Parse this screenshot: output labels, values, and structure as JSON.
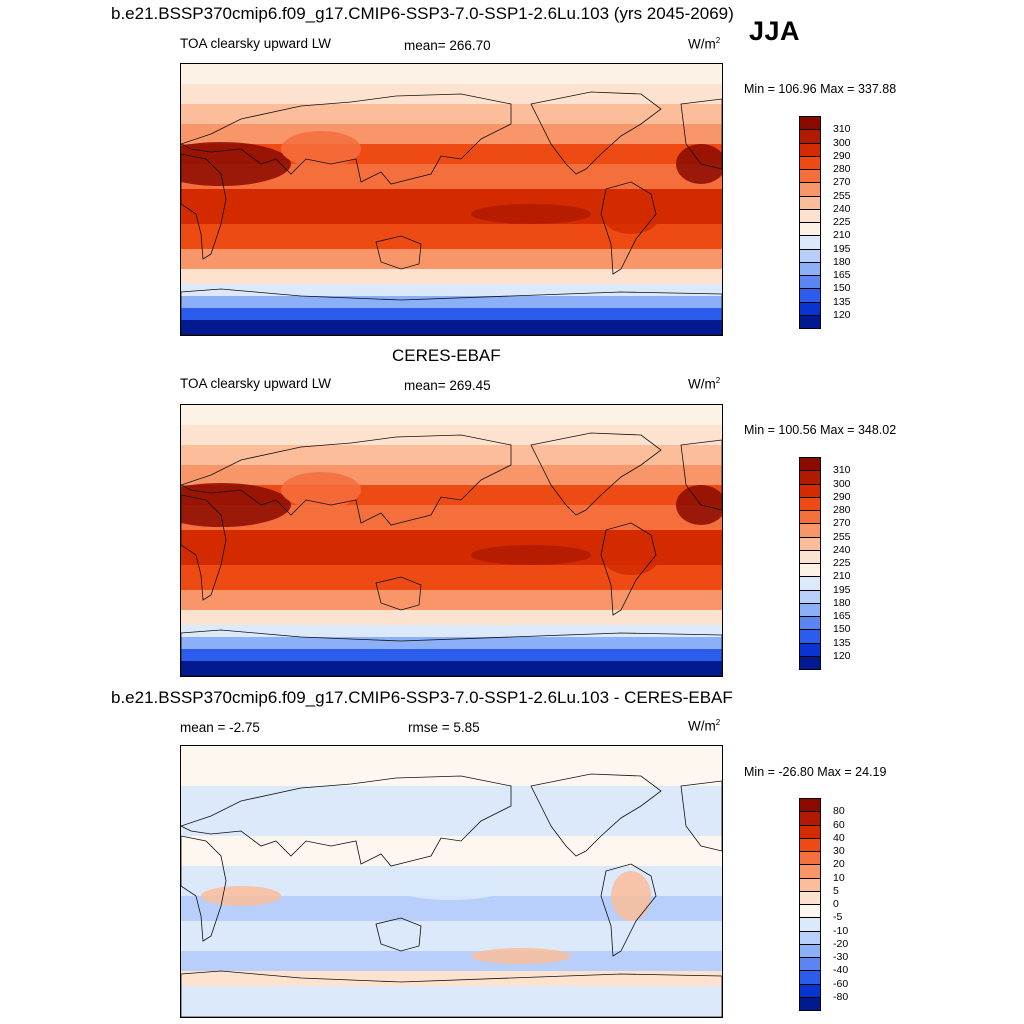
{
  "season": "JJA",
  "panels": [
    {
      "title": "b.e21.BSSP370cmip6.f09_g17.CMIP6-SSP3-7.0-SSP1-2.6Lu.103 (yrs 2045-2069)",
      "left_label": "TOA clearsky upward LW",
      "center_label": "mean= 266.70",
      "units": "W/m",
      "units_sup": "2",
      "minmax": "Min = 106.96 Max = 337.88",
      "kind": "abs"
    },
    {
      "title": "CERES-EBAF",
      "left_label": "TOA clearsky upward LW",
      "center_label": "mean= 269.45",
      "units": "W/m",
      "units_sup": "2",
      "minmax": "Min = 100.56 Max = 348.02",
      "kind": "abs"
    },
    {
      "title": "b.e21.BSSP370cmip6.f09_g17.CMIP6-SSP3-7.0-SSP1-2.6Lu.103 - CERES-EBAF",
      "left_label": "mean =  -2.75",
      "center_label": "rmse =   5.85",
      "units": "W/m",
      "units_sup": "2",
      "minmax": "Min = -26.80 Max =  24.19",
      "kind": "diff"
    }
  ],
  "colorbars": {
    "abs": {
      "labels": [
        "310",
        "300",
        "290",
        "280",
        "270",
        "255",
        "240",
        "225",
        "210",
        "195",
        "180",
        "165",
        "150",
        "135",
        "120"
      ],
      "colors": [
        "#8b0a00",
        "#b01a00",
        "#d42a00",
        "#ee4b14",
        "#f56f3c",
        "#f8966a",
        "#fbbd9a",
        "#fde3cf",
        "#fdf2e6",
        "#dbe9fb",
        "#b7cffa",
        "#8cb0f7",
        "#5b86f2",
        "#2b5ceb",
        "#0934d1",
        "#021a8f"
      ]
    },
    "diff": {
      "labels": [
        "80",
        "60",
        "40",
        "30",
        "20",
        "10",
        "5",
        "0",
        "-5",
        "-10",
        "-20",
        "-30",
        "-40",
        "-60",
        "-80"
      ],
      "colors": [
        "#8b0a00",
        "#b01a00",
        "#d42a00",
        "#ee4b14",
        "#f56f3c",
        "#f8966a",
        "#fbbd9a",
        "#fde3cf",
        "#fdf7f0",
        "#dbe9fb",
        "#b7cffa",
        "#8cb0f7",
        "#5b86f2",
        "#2b5ceb",
        "#0934d1",
        "#021a8f"
      ]
    }
  },
  "chart_data": [
    {
      "type": "heatmap",
      "title": "b.e21.BSSP370cmip6.f09_g17.CMIP6-SSP3-7.0-SSP1-2.6Lu.103 (yrs 2045-2069)",
      "variable": "TOA clearsky upward LW",
      "season": "JJA",
      "units": "W/m2",
      "mean": 266.7,
      "min": 106.96,
      "max": 337.88,
      "contour_levels": [
        120,
        135,
        150,
        165,
        180,
        195,
        210,
        225,
        240,
        255,
        270,
        280,
        290,
        300,
        310
      ]
    },
    {
      "type": "heatmap",
      "title": "CERES-EBAF",
      "variable": "TOA clearsky upward LW",
      "season": "JJA",
      "units": "W/m2",
      "mean": 269.45,
      "min": 100.56,
      "max": 348.02,
      "contour_levels": [
        120,
        135,
        150,
        165,
        180,
        195,
        210,
        225,
        240,
        255,
        270,
        280,
        290,
        300,
        310
      ]
    },
    {
      "type": "heatmap",
      "title": "b.e21.BSSP370cmip6.f09_g17.CMIP6-SSP3-7.0-SSP1-2.6Lu.103 - CERES-EBAF",
      "season": "JJA",
      "units": "W/m2",
      "mean": -2.75,
      "rmse": 5.85,
      "min": -26.8,
      "max": 24.19,
      "contour_levels": [
        -80,
        -60,
        -40,
        -30,
        -20,
        -10,
        -5,
        0,
        5,
        10,
        20,
        30,
        40,
        60,
        80
      ]
    }
  ]
}
